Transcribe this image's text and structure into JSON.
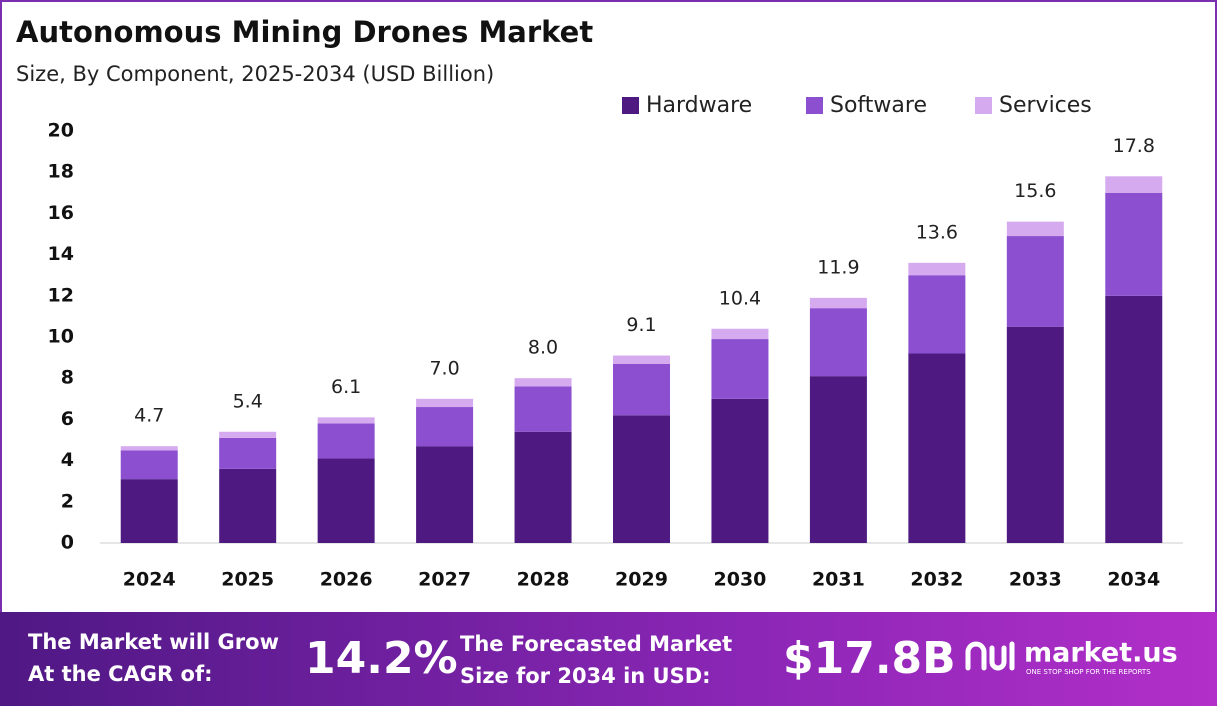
{
  "chart_data": {
    "type": "stacked-bar",
    "title": "Autonomous Mining Drones Market",
    "subtitle": "Size, By Component, 2025-2034 (USD Billion)",
    "categories": [
      "2024",
      "2025",
      "2026",
      "2027",
      "2028",
      "2029",
      "2030",
      "2031",
      "2032",
      "2033",
      "2034"
    ],
    "series": [
      {
        "name": "Hardware",
        "color": "#4e1a82",
        "values": [
          3.1,
          3.6,
          4.1,
          4.7,
          5.4,
          6.2,
          7.0,
          8.1,
          9.2,
          10.5,
          12.0
        ]
      },
      {
        "name": "Software",
        "color": "#8b4fd0",
        "values": [
          1.4,
          1.5,
          1.7,
          1.9,
          2.2,
          2.5,
          2.9,
          3.3,
          3.8,
          4.4,
          5.0
        ]
      },
      {
        "name": "Services",
        "color": "#d5aaee",
        "values": [
          0.2,
          0.3,
          0.3,
          0.4,
          0.4,
          0.4,
          0.5,
          0.5,
          0.6,
          0.7,
          0.8
        ]
      }
    ],
    "totals": {
      "values": [
        4.7,
        5.4,
        6.1,
        7.0,
        8.0,
        9.1,
        10.4,
        11.9,
        13.6,
        15.6,
        17.8
      ],
      "value_labels": [
        "4.7",
        "5.4",
        "6.1",
        "7.0",
        "8.0",
        "9.1",
        "10.4",
        "11.9",
        "13.6",
        "15.6",
        "17.8"
      ]
    },
    "ylim": [
      0,
      20
    ],
    "yticks": [
      0,
      2,
      4,
      6,
      8,
      10,
      12,
      14,
      16,
      18,
      20
    ],
    "grid": false,
    "legend": "top-right"
  },
  "banner": {
    "cagr_text": [
      "The Market will Grow",
      "At the CAGR of:"
    ],
    "cagr": "14.2%",
    "forecast_text": [
      "The Forecasted Market",
      "Size for 2034 in USD:"
    ],
    "forecast": "$17.8B",
    "brand": "market.us",
    "tagline": "ONE STOP SHOP FOR THE REPORTS"
  }
}
